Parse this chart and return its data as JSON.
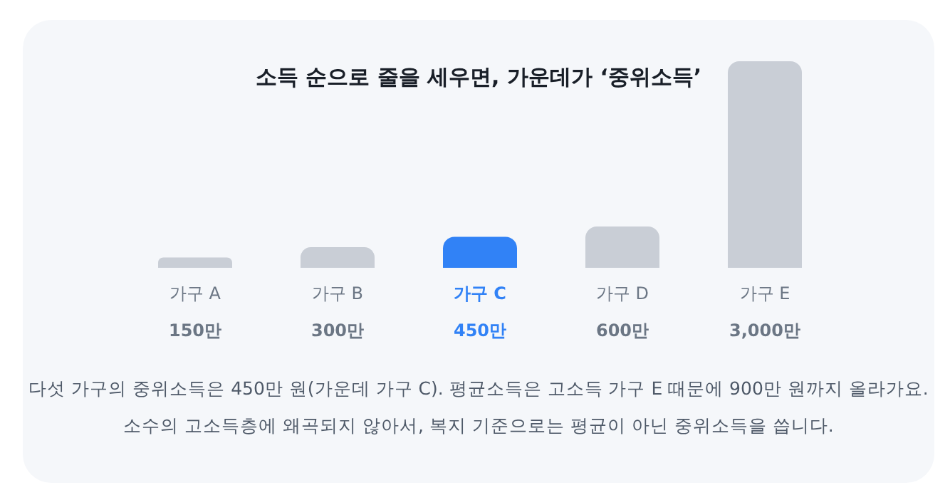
{
  "chart_data": {
    "type": "bar",
    "title": "소득 순으로 줄을 세우면, 가운데가 ‘중위소득’",
    "categories": [
      "가구 A",
      "가구 B",
      "가구 C",
      "가구 D",
      "가구 E"
    ],
    "values": [
      150,
      300,
      450,
      600,
      3000
    ],
    "value_labels": [
      "150만",
      "300만",
      "450만",
      "600만",
      "3,000만"
    ],
    "colors": [
      "#c9ced6",
      "#c9ced6",
      "#3182f6",
      "#c9ced6",
      "#c9ced6"
    ],
    "annotations": [
      "다섯 가구의 중위소득은 450만 원(가운데 가구 C). 평균소득은 고소득 가구 E 때문에 900만 원까지 올라가요.",
      "소수의 고소득층에 왜곡되지 않아서, 복지 기준으로는 평균이 아닌 중위소득을 씁니다."
    ]
  }
}
